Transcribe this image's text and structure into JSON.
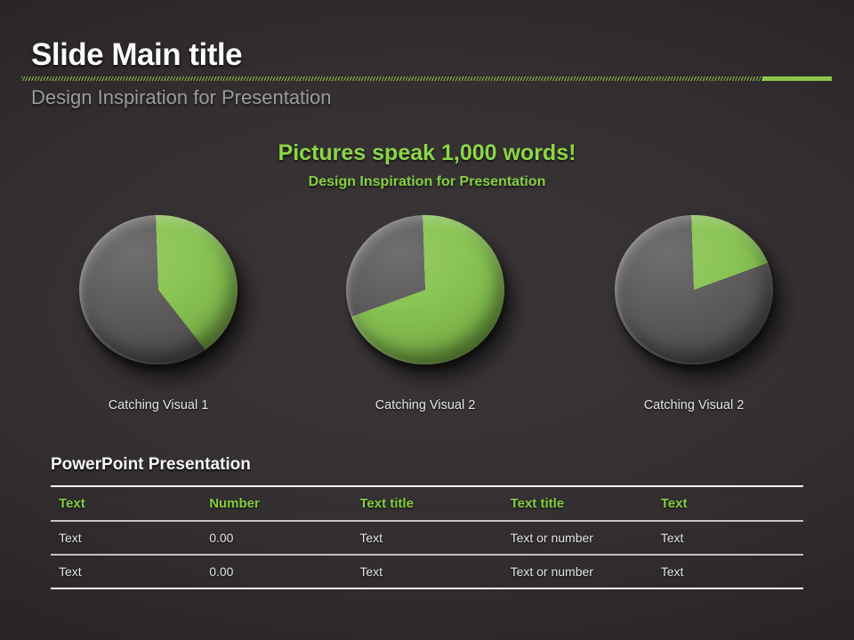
{
  "header": {
    "title": "Slide Main title",
    "subtitle": "Design Inspiration for Presentation"
  },
  "headline": {
    "title": "Pictures speak 1,000 words!",
    "subtitle": "Design Inspiration for Presentation"
  },
  "colors": {
    "accent_green": "#8cc64a",
    "headline_green": "#8bd746",
    "table_header_green": "#82cd3f",
    "pie_green": "#85c24e",
    "pie_gray": "#595757",
    "background_center": "#3b3738",
    "background_edge": "#1f1b1c",
    "text_light": "#e3e4e5",
    "text_gray": "#9b9c9e"
  },
  "chart_data": [
    {
      "type": "pie",
      "title": "Catching Visual 1",
      "legend_position": "none",
      "slices": [
        {
          "label": "green",
          "value": 40,
          "color": "#85c24e"
        },
        {
          "label": "gray",
          "value": 60,
          "color": "#595757"
        }
      ]
    },
    {
      "type": "pie",
      "title": "Catching Visual 2",
      "legend_position": "none",
      "slices": [
        {
          "label": "green",
          "value": 70,
          "color": "#85c24e"
        },
        {
          "label": "gray",
          "value": 30,
          "color": "#595757"
        }
      ]
    },
    {
      "type": "pie",
      "title": "Catching Visual 2",
      "legend_position": "none",
      "slices": [
        {
          "label": "green",
          "value": 20,
          "color": "#85c24e"
        },
        {
          "label": "gray",
          "value": 80,
          "color": "#595757"
        }
      ]
    }
  ],
  "table": {
    "title": "PowerPoint Presentation",
    "headers": [
      "Text",
      "Number",
      "Text title",
      "Text title",
      "Text"
    ],
    "rows": [
      [
        "Text",
        "0.00",
        "Text",
        "Text or number",
        "Text"
      ],
      [
        "Text",
        "0.00",
        "Text",
        "Text or number",
        "Text"
      ]
    ]
  }
}
